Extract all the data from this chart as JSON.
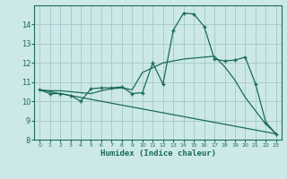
{
  "xlabel": "Humidex (Indice chaleur)",
  "background_color": "#cce8e8",
  "grid_color": "#aacccc",
  "line_color": "#1a6b5a",
  "xlim": [
    -0.5,
    23.5
  ],
  "ylim": [
    8,
    15
  ],
  "yticks": [
    8,
    9,
    10,
    11,
    12,
    13,
    14
  ],
  "xticks": [
    0,
    1,
    2,
    3,
    4,
    5,
    6,
    7,
    8,
    9,
    10,
    11,
    12,
    13,
    14,
    15,
    16,
    17,
    18,
    19,
    20,
    21,
    22,
    23
  ],
  "curve1_x": [
    0,
    1,
    2,
    3,
    4,
    5,
    6,
    7,
    8,
    9,
    10,
    11,
    12,
    13,
    14,
    15,
    16,
    17,
    18,
    19,
    20,
    21,
    22,
    23
  ],
  "curve1_y": [
    10.6,
    10.4,
    10.4,
    10.3,
    10.0,
    10.65,
    10.7,
    10.7,
    10.75,
    10.4,
    10.45,
    12.0,
    10.9,
    13.7,
    14.6,
    14.55,
    13.9,
    12.2,
    12.1,
    12.15,
    12.3,
    10.9,
    8.9,
    8.3
  ],
  "curve2_x": [
    0,
    1,
    2,
    3,
    4,
    5,
    6,
    7,
    8,
    9,
    10,
    11,
    12,
    13,
    14,
    15,
    16,
    17,
    18,
    19,
    20,
    21,
    22,
    23
  ],
  "curve2_y": [
    10.6,
    10.55,
    10.55,
    10.5,
    10.45,
    10.4,
    10.55,
    10.65,
    10.7,
    10.6,
    11.5,
    11.75,
    12.0,
    12.1,
    12.2,
    12.25,
    12.3,
    12.35,
    11.8,
    11.1,
    10.2,
    9.5,
    8.8,
    8.3
  ],
  "curve3_x": [
    0,
    23
  ],
  "curve3_y": [
    10.6,
    8.3
  ]
}
